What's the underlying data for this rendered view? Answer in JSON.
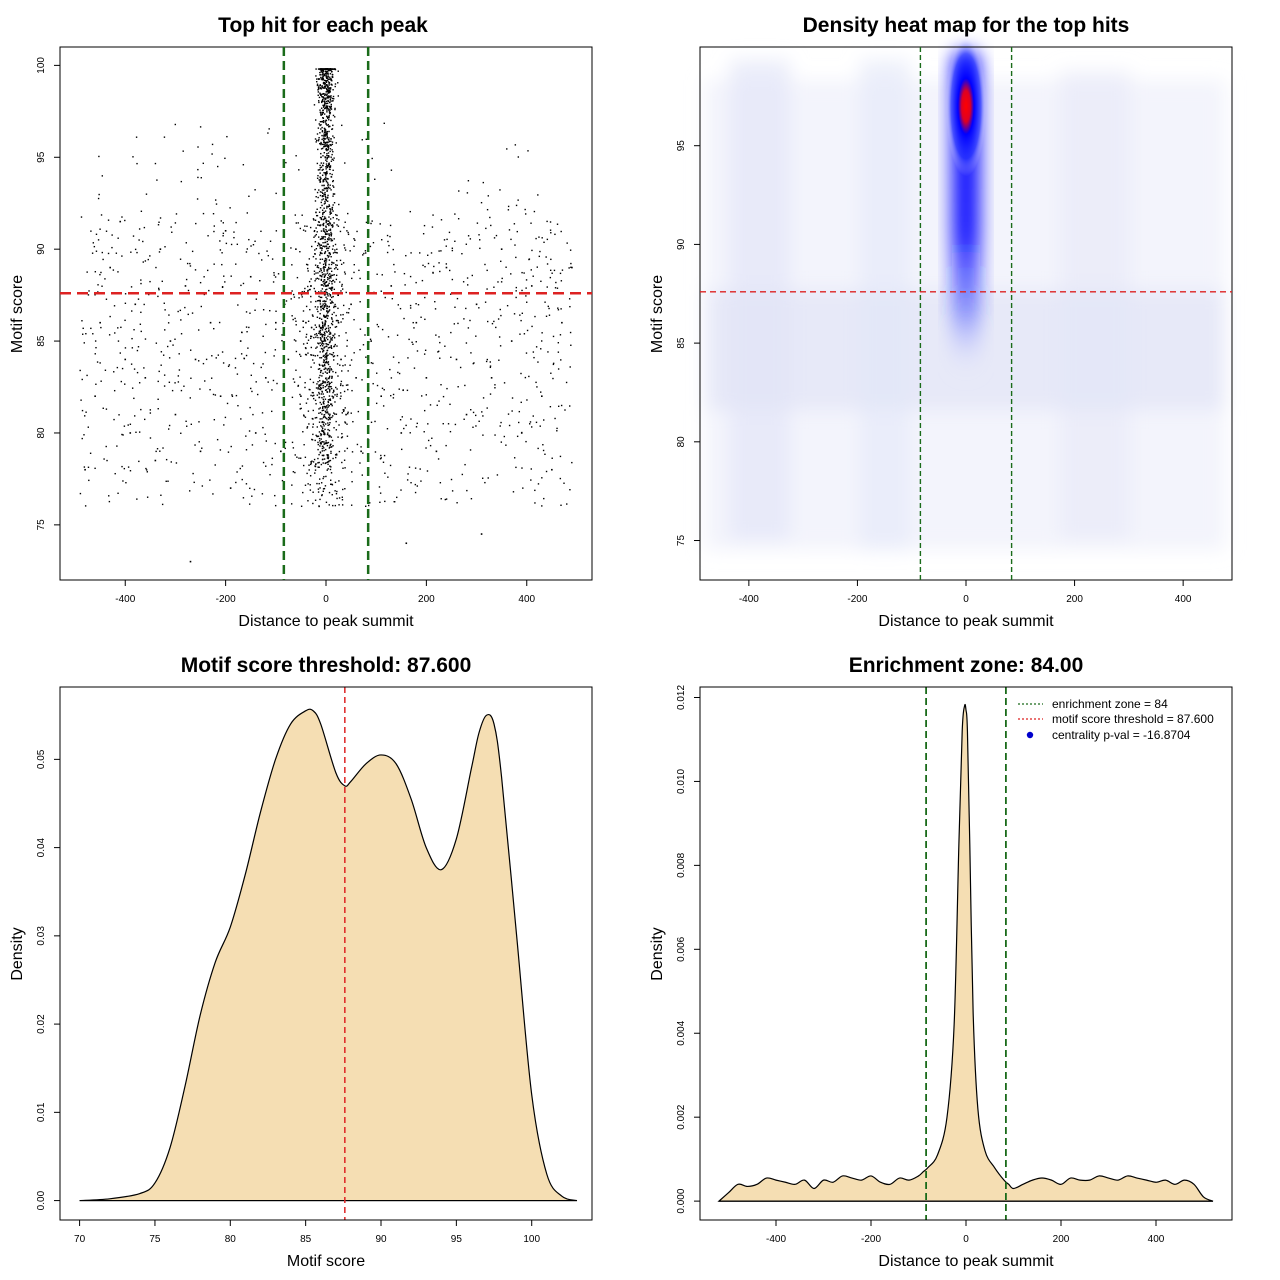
{
  "colors": {
    "threshold": "#dd2222",
    "zone": "#1a6b1a",
    "fill": "#f5deb3",
    "heat_low": "#ffffff",
    "heat_mid": "#0000ff",
    "heat_high": "#ff0000",
    "point": "#000000"
  },
  "chart_data": [
    {
      "id": "scatter",
      "type": "scatter",
      "title": "Top hit for each peak",
      "xlabel": "Distance to peak summit",
      "ylabel": "Motif score",
      "xlim": [
        -530,
        530
      ],
      "ylim": [
        72,
        101
      ],
      "xticks": [
        -400,
        -200,
        0,
        200,
        400
      ],
      "yticks": [
        75,
        80,
        85,
        90,
        95,
        100
      ],
      "threshold": 87.6,
      "zone": [
        -84,
        84
      ],
      "points": [
        [
          -480,
          78
        ],
        [
          -460,
          82
        ],
        [
          -450,
          86
        ],
        [
          -430,
          89
        ],
        [
          -410,
          91.5
        ],
        [
          -400,
          84
        ],
        [
          -390,
          80
        ],
        [
          -380,
          87
        ],
        [
          -360,
          83
        ],
        [
          -340,
          78.5
        ],
        [
          -330,
          90
        ],
        [
          -310,
          85
        ],
        [
          -300,
          81
        ],
        [
          -280,
          88
        ],
        [
          -270,
          73
        ],
        [
          -260,
          84
        ],
        [
          -250,
          79
        ],
        [
          -230,
          86
        ],
        [
          -210,
          82
        ],
        [
          -200,
          91
        ],
        [
          -190,
          77
        ],
        [
          -170,
          85
        ],
        [
          -150,
          88.5
        ],
        [
          -140,
          80
        ],
        [
          -120,
          83
        ],
        [
          -100,
          86
        ],
        [
          -90,
          79
        ],
        [
          -75,
          84
        ],
        [
          -60,
          90
        ],
        [
          -50,
          82
        ],
        [
          -40,
          86
        ],
        [
          -30,
          88
        ],
        [
          -20,
          92
        ],
        [
          -10,
          95
        ],
        [
          0,
          97
        ],
        [
          5,
          98.5
        ],
        [
          10,
          96
        ],
        [
          15,
          93
        ],
        [
          20,
          89
        ],
        [
          25,
          86
        ],
        [
          30,
          84
        ],
        [
          40,
          81
        ],
        [
          50,
          87
        ],
        [
          60,
          83
        ],
        [
          70,
          79
        ],
        [
          90,
          85
        ],
        [
          110,
          82
        ],
        [
          130,
          88
        ],
        [
          150,
          80
        ],
        [
          160,
          74
        ],
        [
          180,
          86
        ],
        [
          200,
          83
        ],
        [
          220,
          79
        ],
        [
          240,
          89
        ],
        [
          260,
          84
        ],
        [
          280,
          81
        ],
        [
          300,
          87
        ],
        [
          310,
          74.5
        ],
        [
          330,
          83
        ],
        [
          350,
          90
        ],
        [
          370,
          85
        ],
        [
          390,
          80
        ],
        [
          410,
          88
        ],
        [
          430,
          82
        ],
        [
          450,
          78
        ],
        [
          470,
          86
        ],
        [
          490,
          89
        ]
      ]
    },
    {
      "id": "heatmap",
      "type": "heatmap",
      "title": "Density heat map for the top hits",
      "xlabel": "Distance to peak summit",
      "ylabel": "Motif score",
      "xlim": [
        -490,
        490
      ],
      "ylim": [
        73,
        100
      ],
      "xticks": [
        -400,
        -200,
        0,
        200,
        400
      ],
      "yticks": [
        75,
        80,
        85,
        90,
        95
      ],
      "threshold": 87.6,
      "zone": [
        -84,
        84
      ],
      "hotspot": {
        "x": 0,
        "y": 97
      }
    },
    {
      "id": "score-density",
      "type": "area",
      "title": "Motif score threshold: 87.600",
      "xlabel": "Motif score",
      "ylabel": "Density",
      "xlim": [
        68.7,
        104
      ],
      "ylim": [
        -0.0022,
        0.0582
      ],
      "xticks": [
        70,
        75,
        80,
        85,
        90,
        95,
        100
      ],
      "yticks": [
        0.0,
        0.01,
        0.02,
        0.03,
        0.04,
        0.05
      ],
      "ytick_labels": [
        "0.00",
        "0.01",
        "0.02",
        "0.03",
        "0.04",
        "0.05"
      ],
      "threshold": 87.6,
      "x": [
        70,
        72,
        74,
        75,
        76,
        77,
        78,
        79,
        80,
        81,
        82,
        83,
        84,
        85,
        85.5,
        86,
        87,
        87.6,
        88,
        89,
        90,
        91,
        92,
        93,
        94,
        95,
        96,
        96.5,
        97,
        97.5,
        98,
        99,
        100,
        101,
        102,
        103
      ],
      "values": [
        0.0,
        0.0002,
        0.0008,
        0.002,
        0.006,
        0.013,
        0.021,
        0.027,
        0.031,
        0.037,
        0.044,
        0.05,
        0.054,
        0.0555,
        0.0555,
        0.054,
        0.0485,
        0.047,
        0.0475,
        0.0495,
        0.0505,
        0.0495,
        0.0455,
        0.04,
        0.0375,
        0.041,
        0.049,
        0.053,
        0.055,
        0.054,
        0.048,
        0.03,
        0.012,
        0.003,
        0.0005,
        0.0
      ]
    },
    {
      "id": "distance-density",
      "type": "area",
      "title": "Enrichment zone: 84.00",
      "xlabel": "Distance to peak summit",
      "ylabel": "Density",
      "xlim": [
        -560,
        560
      ],
      "ylim": [
        -0.00045,
        0.01225
      ],
      "xticks": [
        -400,
        -200,
        0,
        200,
        400
      ],
      "yticks": [
        0.0,
        0.002,
        0.004,
        0.006,
        0.008,
        0.01,
        0.012
      ],
      "ytick_labels": [
        "0.000",
        "0.002",
        "0.004",
        "0.006",
        "0.008",
        "0.010",
        "0.012"
      ],
      "zone": [
        -84,
        84
      ],
      "x": [
        -520,
        -500,
        -480,
        -460,
        -440,
        -420,
        -400,
        -380,
        -360,
        -340,
        -320,
        -300,
        -280,
        -260,
        -240,
        -220,
        -200,
        -180,
        -160,
        -140,
        -120,
        -100,
        -90,
        -80,
        -60,
        -40,
        -25,
        -15,
        -8,
        -3,
        0,
        3,
        8,
        15,
        25,
        40,
        60,
        80,
        90,
        100,
        120,
        140,
        160,
        180,
        200,
        220,
        240,
        260,
        280,
        300,
        320,
        340,
        360,
        380,
        400,
        420,
        440,
        460,
        480,
        500,
        520
      ],
      "values": [
        0.0,
        0.0002,
        0.0004,
        0.00035,
        0.0004,
        0.00055,
        0.0005,
        0.00045,
        0.0004,
        0.0005,
        0.0003,
        0.0005,
        0.00045,
        0.0006,
        0.00055,
        0.0005,
        0.0006,
        0.00045,
        0.0004,
        0.00055,
        0.0005,
        0.0006,
        0.0007,
        0.0008,
        0.0011,
        0.002,
        0.0042,
        0.0085,
        0.0112,
        0.0118,
        0.0117,
        0.0112,
        0.0085,
        0.0045,
        0.0022,
        0.0012,
        0.0008,
        0.0005,
        0.0004,
        0.0003,
        0.0004,
        0.0005,
        0.00055,
        0.0005,
        0.0004,
        0.00055,
        0.0005,
        0.0005,
        0.0006,
        0.00055,
        0.0005,
        0.0006,
        0.00055,
        0.0005,
        0.00045,
        0.0005,
        0.0004,
        0.0005,
        0.0004,
        0.0001,
        0.0
      ],
      "legend": [
        {
          "label": "enrichment zone = 84",
          "color": "#1a6b1a",
          "style": "dotted"
        },
        {
          "label": "motif score threshold = 87.600",
          "color": "#dd2222",
          "style": "dotted"
        },
        {
          "label": "centrality p-val = -16.8704",
          "color": "#0000cc",
          "style": "point"
        }
      ]
    }
  ]
}
